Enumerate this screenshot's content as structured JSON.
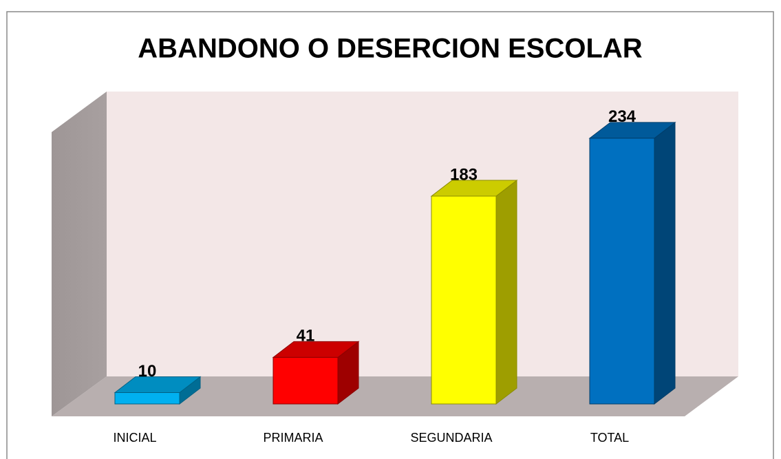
{
  "chart_data": {
    "type": "bar3d",
    "title": "ABANDONO O DESERCION ESCOLAR",
    "categories": [
      "INICIAL",
      "PRIMARIA",
      "SEGUNDARIA",
      "TOTAL"
    ],
    "values": [
      10,
      41,
      183,
      234
    ],
    "colors": [
      "#00b0f0",
      "#ff0000",
      "#ffff00",
      "#0070c0"
    ]
  }
}
